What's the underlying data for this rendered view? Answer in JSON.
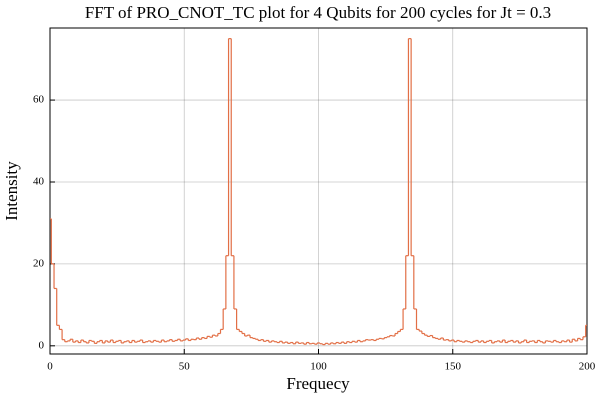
{
  "chart_data": {
    "type": "step",
    "title": "FFT of PRO_CNOT_TC plot for 4 Qubits for 200 cycles for Jt = 0.3",
    "x_label": "Frequecy",
    "y_label": "Intensity",
    "color": "#e26f46",
    "grid": true,
    "xlim": [
      0,
      200
    ],
    "xticks": [
      0,
      50,
      100,
      150,
      200
    ],
    "ylim": [
      -2,
      77.6
    ],
    "yticks": [
      0,
      20,
      40,
      60
    ],
    "x": [
      0,
      1,
      2,
      3,
      4,
      5,
      6,
      7,
      8,
      9,
      10,
      11,
      12,
      13,
      14,
      15,
      16,
      17,
      18,
      19,
      20,
      21,
      22,
      23,
      24,
      25,
      26,
      27,
      28,
      29,
      30,
      31,
      32,
      33,
      34,
      35,
      36,
      37,
      38,
      39,
      40,
      41,
      42,
      43,
      44,
      45,
      46,
      47,
      48,
      49,
      50,
      51,
      52,
      53,
      54,
      55,
      56,
      57,
      58,
      59,
      60,
      61,
      62,
      63,
      64,
      65,
      66,
      67,
      68,
      69,
      70,
      71,
      72,
      73,
      74,
      75,
      76,
      77,
      78,
      79,
      80,
      81,
      82,
      83,
      84,
      85,
      86,
      87,
      88,
      89,
      90,
      91,
      92,
      93,
      94,
      95,
      96,
      97,
      98,
      99,
      100,
      101,
      102,
      103,
      104,
      105,
      106,
      107,
      108,
      109,
      110,
      111,
      112,
      113,
      114,
      115,
      116,
      117,
      118,
      119,
      120,
      121,
      122,
      123,
      124,
      125,
      126,
      127,
      128,
      129,
      130,
      131,
      132,
      133,
      134,
      135,
      136,
      137,
      138,
      139,
      140,
      141,
      142,
      143,
      144,
      145,
      146,
      147,
      148,
      149,
      150,
      151,
      152,
      153,
      154,
      155,
      156,
      157,
      158,
      159,
      160,
      161,
      162,
      163,
      164,
      165,
      166,
      167,
      168,
      169,
      170,
      171,
      172,
      173,
      174,
      175,
      176,
      177,
      178,
      179,
      180,
      181,
      182,
      183,
      184,
      185,
      186,
      187,
      188,
      189,
      190,
      191,
      192,
      193,
      194,
      195,
      196,
      197,
      198,
      199,
      200
    ],
    "values": [
      31,
      20,
      14,
      5,
      4,
      1.5,
      1,
      1.2,
      1.6,
      0.9,
      1.2,
      0.8,
      1.4,
      1,
      0.7,
      1.3,
      1.1,
      0.6,
      1,
      1.3,
      0.7,
      1.2,
      0.9,
      1.4,
      0.8,
      1.1,
      1.3,
      0.7,
      1,
      1.2,
      0.8,
      1.3,
      0.9,
      1.1,
      1.4,
      0.8,
      1,
      1.2,
      0.9,
      1.3,
      1.1,
      0.9,
      1.4,
      1,
      1.2,
      1.5,
      1.1,
      1.3,
      1.6,
      1.2,
      1.4,
      1.7,
      1.3,
      1.6,
      1.5,
      1.9,
      1.6,
      2,
      1.8,
      2.3,
      2.1,
      2.6,
      2.4,
      3,
      4,
      9,
      22,
      75,
      22,
      9,
      4,
      3.5,
      3,
      2.4,
      2.6,
      2,
      1.8,
      1.6,
      1.3,
      1.5,
      1.1,
      1.3,
      0.9,
      1.2,
      1,
      0.8,
      1.1,
      0.7,
      0.9,
      0.6,
      0.8,
      0.5,
      0.9,
      0.6,
      0.7,
      0.4,
      0.8,
      0.5,
      0.6,
      0.4,
      0.7,
      0.5,
      0.3,
      0.6,
      0.4,
      0.7,
      0.5,
      0.8,
      0.6,
      0.9,
      0.6,
      1,
      0.8,
      1.1,
      0.9,
      1.3,
      1,
      1.2,
      1.5,
      1.4,
      1.5,
      1.3,
      1.6,
      1.8,
      1.7,
      2,
      2.2,
      2.5,
      2.4,
      3,
      3.5,
      4,
      9,
      22,
      75,
      22,
      9,
      4,
      3.6,
      3,
      2.6,
      2.3,
      2.5,
      2,
      1.8,
      1.6,
      1.9,
      1.4,
      1.5,
      1.2,
      1.4,
      1,
      1.3,
      1.1,
      0.9,
      1.2,
      1,
      0.8,
      1.1,
      1.3,
      0.9,
      1.2,
      0.8,
      1.1,
      1.3,
      0.7,
      1,
      1.2,
      0.9,
      1.4,
      0.8,
      1.1,
      1.3,
      0.9,
      1.2,
      0.7,
      1,
      1.4,
      0.8,
      1.1,
      1.2,
      0.8,
      1.3,
      1,
      0.7,
      1.2,
      1.1,
      0.9,
      1.3,
      1,
      0.8,
      1.2,
      1,
      1.4,
      0.9,
      1.6,
      1.2,
      1.8,
      1.5,
      2.2,
      5
    ]
  }
}
